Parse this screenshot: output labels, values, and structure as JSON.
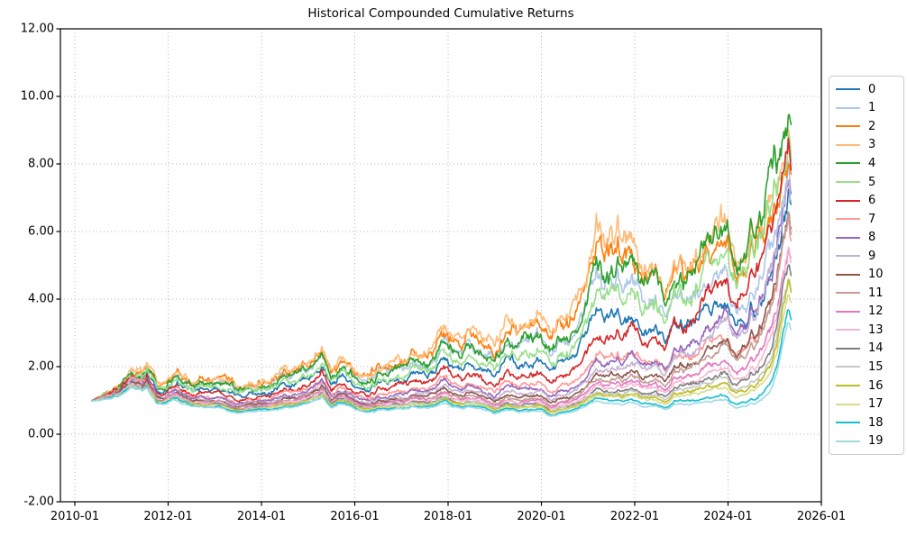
{
  "chart_data": {
    "type": "line",
    "title": "Historical Compounded Cumulative Returns",
    "xlabel": "",
    "ylabel": "",
    "x_tick_labels": [
      "2010-01",
      "2012-01",
      "2014-01",
      "2016-01",
      "2018-01",
      "2020-01",
      "2022-01",
      "2024-01",
      "2026-01"
    ],
    "x_tick_years": [
      2010,
      2012,
      2014,
      2016,
      2018,
      2020,
      2022,
      2024,
      2026
    ],
    "y_ticks": [
      -2,
      0,
      2,
      4,
      6,
      8,
      10,
      12
    ],
    "y_tick_labels": [
      "-2.00",
      "0.00",
      "2.00",
      "4.00",
      "6.00",
      "8.00",
      "10.00",
      "12.00"
    ],
    "ylim": [
      -2,
      12
    ],
    "xlim_years": [
      2009.69,
      2026.0
    ],
    "grid": {
      "style": "dotted",
      "color": "#b5b5b5"
    },
    "legend_position": "center right, outside axes",
    "data_start_year": 2010.37,
    "data_end_year": 2025.35,
    "samples_per_year": 52,
    "series": [
      {
        "label": "0",
        "color": "#1f77b4",
        "w_early": 0.28,
        "w_late": 0.28
      },
      {
        "label": "1",
        "color": "#aec7e8",
        "w_early": 0.12,
        "w_late": 0.23
      },
      {
        "label": "2",
        "color": "#ff7f0e",
        "w_early": 0.02,
        "w_late": 0.1
      },
      {
        "label": "3",
        "color": "#ffbb78",
        "w_early": 0.0,
        "w_late": 0.06
      },
      {
        "label": "4",
        "color": "#2ca02c",
        "w_early": 0.11,
        "w_late": 0.0
      },
      {
        "label": "5",
        "color": "#98df8a",
        "w_early": 0.21,
        "w_late": 0.06
      },
      {
        "label": "6",
        "color": "#d62728",
        "w_early": 0.4,
        "w_late": 0.09
      },
      {
        "label": "7",
        "color": "#ff9896",
        "w_early": 0.51,
        "w_late": 0.4
      },
      {
        "label": "8",
        "color": "#9467bd",
        "w_early": 0.57,
        "w_late": 0.22
      },
      {
        "label": "9",
        "color": "#c5b0d5",
        "w_early": 0.63,
        "w_late": 0.23
      },
      {
        "label": "10",
        "color": "#8c564b",
        "w_early": 0.68,
        "w_late": 0.33
      },
      {
        "label": "11",
        "color": "#c49c94",
        "w_early": 0.73,
        "w_late": 0.38
      },
      {
        "label": "12",
        "color": "#e377c2",
        "w_early": 0.76,
        "w_late": 0.485
      },
      {
        "label": "13",
        "color": "#f7b6d2",
        "w_early": 0.8,
        "w_late": 0.55
      },
      {
        "label": "14",
        "color": "#7f7f7f",
        "w_early": 0.84,
        "w_late": 0.62
      },
      {
        "label": "15",
        "color": "#c7c7c7",
        "w_early": 0.86,
        "w_late": 0.68
      },
      {
        "label": "16",
        "color": "#bcbd22",
        "w_early": 0.885,
        "w_late": 0.74
      },
      {
        "label": "17",
        "color": "#dbdb8d",
        "w_early": 0.91,
        "w_late": 0.8
      },
      {
        "label": "18",
        "color": "#17becf",
        "w_early": 0.955,
        "w_late": 0.92
      },
      {
        "label": "19",
        "color": "#9edae5",
        "w_early": 1.0,
        "w_late": 1.0
      }
    ],
    "envelope": {
      "comment": "Estimated keypoints read off the plot: 'top' = value of the highest line, 'bottom' = value of the lowest line at each year. Each series i lies between them at log-space weight w (0=top,1=bottom), drifting linearly from w_early (until 2021.2) to w_late (by 2025.3). All 20 lines start near 1.0 in mid-2010 and spike sharply in early 2025 (top ~9.9, bottom ~3.3).",
      "years": [
        2010.37,
        2010.6,
        2010.9,
        2011.1,
        2011.22,
        2011.45,
        2011.55,
        2011.75,
        2011.9,
        2012.1,
        2012.3,
        2012.6,
        2012.9,
        2013.1,
        2013.35,
        2013.6,
        2013.9,
        2014.2,
        2014.5,
        2014.8,
        2015.05,
        2015.3,
        2015.5,
        2015.65,
        2015.85,
        2016.05,
        2016.25,
        2016.6,
        2016.9,
        2017.2,
        2017.6,
        2017.95,
        2018.1,
        2018.35,
        2018.6,
        2018.8,
        2019.0,
        2019.25,
        2019.5,
        2019.75,
        2020.0,
        2020.2,
        2020.45,
        2020.7,
        2020.95,
        2021.17,
        2021.45,
        2021.7,
        2021.95,
        2022.15,
        2022.45,
        2022.7,
        2022.85,
        2023.1,
        2023.4,
        2023.7,
        2023.95,
        2024.15,
        2024.4,
        2024.65,
        2024.9,
        2025.05,
        2025.18,
        2025.28,
        2025.35
      ],
      "top": [
        1.0,
        1.18,
        1.45,
        1.75,
        2.08,
        1.85,
        2.0,
        1.45,
        1.4,
        1.85,
        1.75,
        1.55,
        1.6,
        1.65,
        1.5,
        1.5,
        1.55,
        1.6,
        1.75,
        1.85,
        2.05,
        2.7,
        1.95,
        2.1,
        2.05,
        1.9,
        1.8,
        2.05,
        2.2,
        2.35,
        2.55,
        3.2,
        2.9,
        2.75,
        3.05,
        2.8,
        2.65,
        3.3,
        3.1,
        3.35,
        3.75,
        2.95,
        3.35,
        3.55,
        4.4,
        5.95,
        5.4,
        5.55,
        5.6,
        4.9,
        4.75,
        4.35,
        5.0,
        5.05,
        5.65,
        5.95,
        6.35,
        5.9,
        6.15,
        6.5,
        7.9,
        8.6,
        9.3,
        9.93,
        9.55
      ],
      "bottom": [
        0.98,
        1.02,
        1.15,
        1.3,
        1.45,
        1.3,
        1.35,
        0.9,
        0.88,
        1.05,
        0.95,
        0.8,
        0.78,
        0.8,
        0.65,
        0.66,
        0.7,
        0.72,
        0.75,
        0.8,
        0.92,
        1.1,
        0.78,
        0.9,
        0.85,
        0.72,
        0.65,
        0.72,
        0.75,
        0.78,
        0.8,
        0.92,
        0.8,
        0.75,
        0.8,
        0.72,
        0.62,
        0.72,
        0.66,
        0.68,
        0.72,
        0.52,
        0.62,
        0.66,
        0.8,
        0.97,
        0.88,
        0.9,
        0.92,
        0.82,
        0.78,
        0.7,
        0.85,
        0.88,
        0.92,
        0.95,
        1.0,
        0.8,
        0.88,
        0.95,
        1.3,
        1.9,
        2.85,
        3.4,
        3.2
      ]
    }
  }
}
